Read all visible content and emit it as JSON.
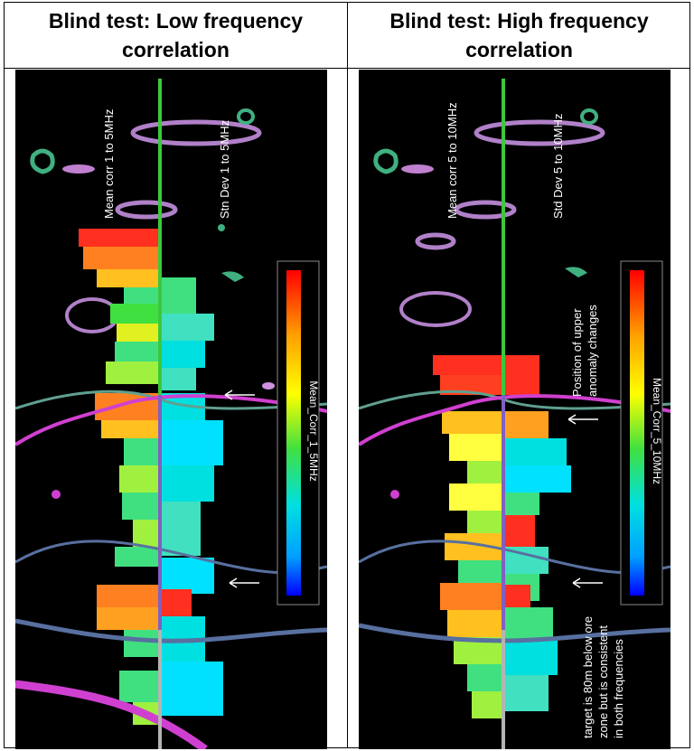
{
  "headers": {
    "left_line1": "Blind test: Low frequency",
    "left_line2": "correlation",
    "right_line1": "Blind test: High frequency",
    "right_line2": "correlation"
  },
  "left_panel": {
    "label_mean": "Mean corr 1 to 5MHz",
    "label_std": "Stn Dev 1 to 5MHz",
    "colorbar_caption": "Mean_Corr_1_5MHz"
  },
  "right_panel": {
    "label_mean": "Mean corr 5 to 10MHz",
    "label_std": "Std Dev 5 to 10MHz",
    "colorbar_caption": "Mean_Corr_5_10MHz",
    "annotation_upper_1": "Position of upper",
    "annotation_upper_2": "anomaly changes",
    "annotation_target_1": "target is 80m below ore",
    "annotation_target_2": "zone but is consistent",
    "annotation_target_3": "in both frequencies"
  },
  "colors": {
    "background": "#000000",
    "borehole_green": "#3cc83c",
    "borehole_grey": "#b4b4b4",
    "ore_magenta": "#d040d0",
    "fault_blue": "#5870a0",
    "pink_shapes": "#b080c8",
    "green_shapes": "#40b080"
  }
}
